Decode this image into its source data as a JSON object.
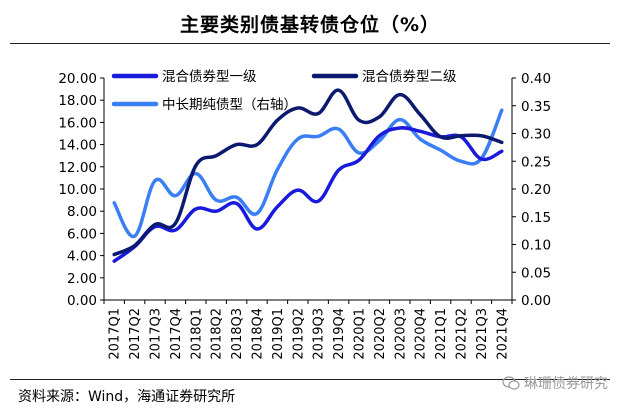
{
  "title": "主要类别债基转债仓位（%）",
  "source": "资料来源：Wind，海通证券研究所",
  "watermark": "琳珊债券研究",
  "chart_data": {
    "type": "line",
    "categories": [
      "2017Q1",
      "2017Q2",
      "2017Q3",
      "2017Q4",
      "2018Q1",
      "2018Q2",
      "2018Q3",
      "2018Q4",
      "2019Q1",
      "2019Q2",
      "2019Q3",
      "2019Q4",
      "2020Q1",
      "2020Q2",
      "2020Q3",
      "2020Q4",
      "2021Q1",
      "2021Q2",
      "2021Q3",
      "2021Q4"
    ],
    "y_left": {
      "min": 0,
      "max": 20,
      "ticks": [
        "0.00",
        "2.00",
        "4.00",
        "6.00",
        "8.00",
        "10.00",
        "12.00",
        "14.00",
        "16.00",
        "18.00",
        "20.00"
      ]
    },
    "y_right": {
      "min": 0,
      "max": 0.4,
      "ticks": [
        "0.00",
        "0.05",
        "0.10",
        "0.15",
        "0.20",
        "0.25",
        "0.30",
        "0.35",
        "0.40"
      ]
    },
    "series": [
      {
        "name": "混合债券型一级",
        "axis": "left",
        "color": "#1a1adc",
        "width": 3.5,
        "values": [
          3.5,
          4.8,
          6.6,
          6.3,
          8.2,
          8.0,
          8.7,
          6.4,
          8.4,
          9.9,
          8.9,
          11.7,
          12.6,
          14.8,
          15.5,
          15.2,
          14.7,
          14.7,
          12.7,
          13.4
        ]
      },
      {
        "name": "混合债券型二级",
        "axis": "left",
        "color": "#0b1a6e",
        "width": 3.5,
        "values": [
          4.1,
          4.9,
          6.8,
          6.9,
          12.1,
          13.0,
          14.0,
          14.0,
          16.2,
          17.3,
          16.8,
          18.9,
          16.2,
          16.5,
          18.5,
          16.7,
          14.7,
          14.8,
          14.8,
          14.2
        ]
      },
      {
        "name": "中长期纯债型（右轴）",
        "axis": "right",
        "color": "#3a7ef5",
        "width": 3.5,
        "values": [
          0.175,
          0.115,
          0.215,
          0.188,
          0.228,
          0.18,
          0.185,
          0.156,
          0.235,
          0.29,
          0.295,
          0.308,
          0.265,
          0.287,
          0.325,
          0.29,
          0.27,
          0.25,
          0.255,
          0.342
        ]
      }
    ],
    "legend": [
      {
        "label": "混合债券型一级",
        "color": "#1a1adc"
      },
      {
        "label": "混合债券型二级",
        "color": "#0b1a6e"
      },
      {
        "label": "中长期纯债型（右轴）",
        "color": "#3a7ef5"
      }
    ]
  }
}
